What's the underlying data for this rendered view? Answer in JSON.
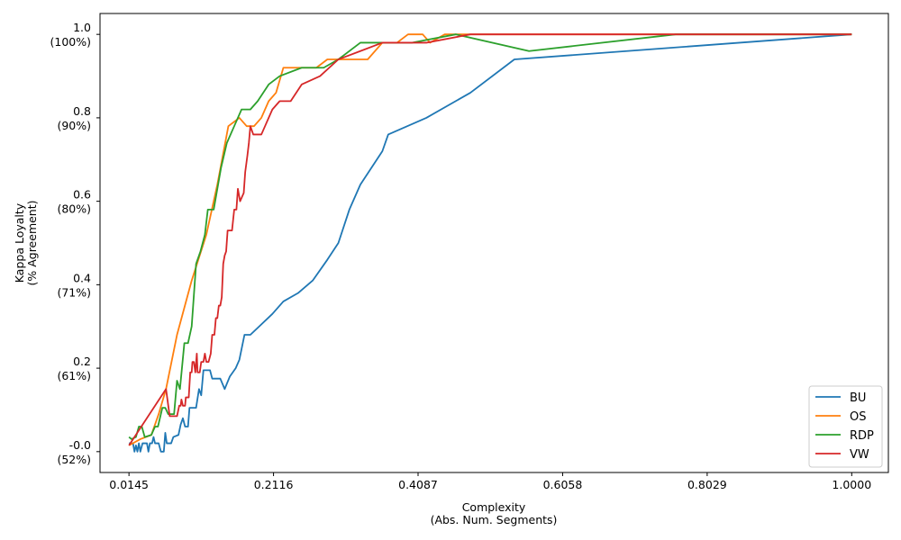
{
  "chart_data": {
    "type": "line",
    "title": "",
    "xlabel": [
      "Complexity",
      "(Abs. Num. Segments)"
    ],
    "ylabel": [
      "Kappa Loyalty",
      "(% Agreement)"
    ],
    "xlim": [
      -0.025,
      1.05
    ],
    "ylim": [
      -0.05,
      1.05
    ],
    "x_ticks": [
      {
        "value": 0.0145,
        "label": "0.0145"
      },
      {
        "value": 0.2116,
        "label": "0.2116"
      },
      {
        "value": 0.4087,
        "label": "0.4087"
      },
      {
        "value": 0.6058,
        "label": "0.6058"
      },
      {
        "value": 0.8029,
        "label": "0.8029"
      },
      {
        "value": 1.0,
        "label": "1.0000"
      }
    ],
    "y_ticks": [
      {
        "value": 0.0,
        "label": "-0.0",
        "sublabel": "(52%)"
      },
      {
        "value": 0.2,
        "label": "0.2",
        "sublabel": "(61%)"
      },
      {
        "value": 0.4,
        "label": "0.4",
        "sublabel": "(71%)"
      },
      {
        "value": 0.6,
        "label": "0.6",
        "sublabel": "(80%)"
      },
      {
        "value": 0.8,
        "label": "0.8",
        "sublabel": "(90%)"
      },
      {
        "value": 1.0,
        "label": "1.0",
        "sublabel": "(100%)"
      }
    ],
    "grid": false,
    "legend_position": "bottom-right",
    "series": [
      {
        "name": "BU",
        "color": "#1f77b4",
        "points": [
          [
            0.0145,
            0.02
          ],
          [
            0.02,
            0.02
          ],
          [
            0.022,
            0.0
          ],
          [
            0.024,
            0.015
          ],
          [
            0.026,
            0.0
          ],
          [
            0.028,
            0.02
          ],
          [
            0.03,
            0.0
          ],
          [
            0.033,
            0.02
          ],
          [
            0.036,
            0.02
          ],
          [
            0.039,
            0.02
          ],
          [
            0.041,
            0.0
          ],
          [
            0.043,
            0.02
          ],
          [
            0.046,
            0.02
          ],
          [
            0.048,
            0.035
          ],
          [
            0.05,
            0.02
          ],
          [
            0.055,
            0.02
          ],
          [
            0.058,
            0.0
          ],
          [
            0.062,
            0.0
          ],
          [
            0.064,
            0.045
          ],
          [
            0.066,
            0.02
          ],
          [
            0.072,
            0.02
          ],
          [
            0.075,
            0.035
          ],
          [
            0.082,
            0.04
          ],
          [
            0.085,
            0.065
          ],
          [
            0.088,
            0.08
          ],
          [
            0.091,
            0.06
          ],
          [
            0.095,
            0.06
          ],
          [
            0.097,
            0.105
          ],
          [
            0.106,
            0.105
          ],
          [
            0.11,
            0.15
          ],
          [
            0.113,
            0.135
          ],
          [
            0.116,
            0.195
          ],
          [
            0.125,
            0.195
          ],
          [
            0.128,
            0.175
          ],
          [
            0.139,
            0.175
          ],
          [
            0.145,
            0.15
          ],
          [
            0.152,
            0.18
          ],
          [
            0.16,
            0.2
          ],
          [
            0.165,
            0.22
          ],
          [
            0.172,
            0.28
          ],
          [
            0.18,
            0.28
          ],
          [
            0.192,
            0.3
          ],
          [
            0.21,
            0.33
          ],
          [
            0.225,
            0.36
          ],
          [
            0.245,
            0.38
          ],
          [
            0.265,
            0.41
          ],
          [
            0.285,
            0.46
          ],
          [
            0.3,
            0.5
          ],
          [
            0.315,
            0.58
          ],
          [
            0.33,
            0.64
          ],
          [
            0.36,
            0.72
          ],
          [
            0.368,
            0.76
          ],
          [
            0.42,
            0.8
          ],
          [
            0.48,
            0.86
          ],
          [
            0.54,
            0.94
          ],
          [
            1.0,
            1.0
          ]
        ]
      },
      {
        "name": "OS",
        "color": "#ff7f0e",
        "points": [
          [
            0.0145,
            0.015
          ],
          [
            0.03,
            0.03
          ],
          [
            0.045,
            0.04
          ],
          [
            0.055,
            0.09
          ],
          [
            0.065,
            0.15
          ],
          [
            0.08,
            0.28
          ],
          [
            0.1,
            0.41
          ],
          [
            0.12,
            0.52
          ],
          [
            0.135,
            0.64
          ],
          [
            0.15,
            0.78
          ],
          [
            0.165,
            0.8
          ],
          [
            0.175,
            0.78
          ],
          [
            0.185,
            0.78
          ],
          [
            0.195,
            0.8
          ],
          [
            0.205,
            0.84
          ],
          [
            0.215,
            0.86
          ],
          [
            0.225,
            0.92
          ],
          [
            0.25,
            0.92
          ],
          [
            0.27,
            0.92
          ],
          [
            0.285,
            0.94
          ],
          [
            0.3,
            0.94
          ],
          [
            0.325,
            0.94
          ],
          [
            0.34,
            0.94
          ],
          [
            0.36,
            0.98
          ],
          [
            0.38,
            0.98
          ],
          [
            0.395,
            1.0
          ],
          [
            0.415,
            1.0
          ],
          [
            0.425,
            0.98
          ],
          [
            0.445,
            1.0
          ],
          [
            1.0,
            1.0
          ]
        ]
      },
      {
        "name": "RDP",
        "color": "#2ca02c",
        "points": [
          [
            0.0145,
            0.035
          ],
          [
            0.018,
            0.03
          ],
          [
            0.024,
            0.035
          ],
          [
            0.028,
            0.06
          ],
          [
            0.032,
            0.06
          ],
          [
            0.036,
            0.035
          ],
          [
            0.045,
            0.04
          ],
          [
            0.05,
            0.06
          ],
          [
            0.054,
            0.06
          ],
          [
            0.06,
            0.105
          ],
          [
            0.064,
            0.105
          ],
          [
            0.068,
            0.09
          ],
          [
            0.072,
            0.09
          ],
          [
            0.076,
            0.09
          ],
          [
            0.08,
            0.17
          ],
          [
            0.084,
            0.15
          ],
          [
            0.09,
            0.26
          ],
          [
            0.095,
            0.26
          ],
          [
            0.1,
            0.3
          ],
          [
            0.106,
            0.45
          ],
          [
            0.112,
            0.48
          ],
          [
            0.118,
            0.52
          ],
          [
            0.122,
            0.58
          ],
          [
            0.13,
            0.58
          ],
          [
            0.14,
            0.68
          ],
          [
            0.148,
            0.74
          ],
          [
            0.158,
            0.78
          ],
          [
            0.168,
            0.82
          ],
          [
            0.18,
            0.82
          ],
          [
            0.19,
            0.84
          ],
          [
            0.205,
            0.88
          ],
          [
            0.22,
            0.9
          ],
          [
            0.25,
            0.92
          ],
          [
            0.28,
            0.92
          ],
          [
            0.3,
            0.94
          ],
          [
            0.33,
            0.98
          ],
          [
            0.375,
            0.98
          ],
          [
            0.4,
            0.98
          ],
          [
            0.46,
            1.0
          ],
          [
            0.56,
            0.96
          ],
          [
            0.76,
            1.0
          ],
          [
            1.0,
            1.0
          ]
        ]
      },
      {
        "name": "VW",
        "color": "#d62728",
        "points": [
          [
            0.0145,
            0.015
          ],
          [
            0.065,
            0.15
          ],
          [
            0.07,
            0.085
          ],
          [
            0.075,
            0.085
          ],
          [
            0.08,
            0.085
          ],
          [
            0.083,
            0.11
          ],
          [
            0.085,
            0.11
          ],
          [
            0.086,
            0.125
          ],
          [
            0.088,
            0.11
          ],
          [
            0.091,
            0.11
          ],
          [
            0.092,
            0.13
          ],
          [
            0.096,
            0.13
          ],
          [
            0.098,
            0.19
          ],
          [
            0.1,
            0.19
          ],
          [
            0.101,
            0.215
          ],
          [
            0.103,
            0.215
          ],
          [
            0.105,
            0.19
          ],
          [
            0.107,
            0.235
          ],
          [
            0.108,
            0.19
          ],
          [
            0.111,
            0.19
          ],
          [
            0.113,
            0.215
          ],
          [
            0.116,
            0.215
          ],
          [
            0.118,
            0.235
          ],
          [
            0.12,
            0.215
          ],
          [
            0.123,
            0.215
          ],
          [
            0.126,
            0.235
          ],
          [
            0.128,
            0.28
          ],
          [
            0.131,
            0.28
          ],
          [
            0.133,
            0.32
          ],
          [
            0.135,
            0.32
          ],
          [
            0.137,
            0.35
          ],
          [
            0.139,
            0.35
          ],
          [
            0.141,
            0.37
          ],
          [
            0.143,
            0.45
          ],
          [
            0.145,
            0.47
          ],
          [
            0.147,
            0.48
          ],
          [
            0.149,
            0.53
          ],
          [
            0.155,
            0.53
          ],
          [
            0.158,
            0.58
          ],
          [
            0.161,
            0.58
          ],
          [
            0.163,
            0.63
          ],
          [
            0.166,
            0.6
          ],
          [
            0.171,
            0.62
          ],
          [
            0.173,
            0.67
          ],
          [
            0.176,
            0.71
          ],
          [
            0.178,
            0.74
          ],
          [
            0.18,
            0.78
          ],
          [
            0.184,
            0.76
          ],
          [
            0.19,
            0.76
          ],
          [
            0.195,
            0.76
          ],
          [
            0.2,
            0.78
          ],
          [
            0.205,
            0.8
          ],
          [
            0.21,
            0.82
          ],
          [
            0.215,
            0.83
          ],
          [
            0.22,
            0.84
          ],
          [
            0.235,
            0.84
          ],
          [
            0.25,
            0.88
          ],
          [
            0.275,
            0.9
          ],
          [
            0.3,
            0.94
          ],
          [
            0.33,
            0.96
          ],
          [
            0.36,
            0.98
          ],
          [
            0.42,
            0.98
          ],
          [
            0.48,
            1.0
          ],
          [
            0.54,
            1.0
          ],
          [
            1.0,
            1.0
          ]
        ]
      }
    ]
  }
}
